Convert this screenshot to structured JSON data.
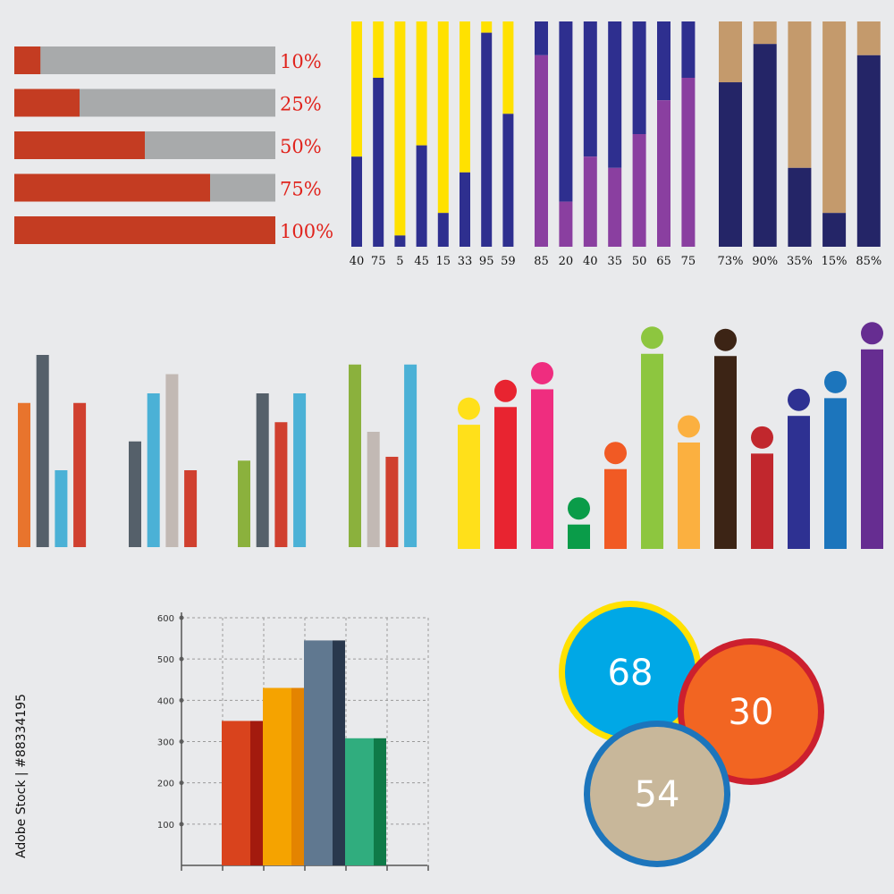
{
  "colors": {
    "background": "#e9eaec",
    "progress_fill": "#c43c22",
    "progress_track": "#a8aaab",
    "progress_label": "#e0231c",
    "yellow": "#ffe100",
    "blue": "#2e2f8f",
    "purple": "#8a3fa0",
    "tan": "#c49a6c",
    "navy": "#242567"
  },
  "watermark": "Adobe Stock | #88334195",
  "chart_data": [
    {
      "type": "bar",
      "orientation": "horizontal",
      "values": [
        10,
        25,
        50,
        75,
        100
      ],
      "labels": [
        "10%",
        "25%",
        "50%",
        "75%",
        "100%"
      ]
    },
    {
      "type": "bar",
      "stacked": true,
      "values": [
        40,
        75,
        5,
        45,
        15,
        33,
        95,
        59
      ],
      "labels": [
        "40",
        "75",
        "5",
        "45",
        "15",
        "33",
        "95",
        "59"
      ],
      "colors": [
        "#2e2f8f",
        "#ffe100"
      ]
    },
    {
      "type": "bar",
      "stacked": true,
      "values": [
        85,
        20,
        40,
        35,
        50,
        65,
        75
      ],
      "labels": [
        "85",
        "20",
        "40",
        "35",
        "50",
        "65",
        "75"
      ],
      "colors": [
        "#8a3fa0",
        "#2e2f8f"
      ]
    },
    {
      "type": "bar",
      "stacked": true,
      "values": [
        73,
        90,
        35,
        15,
        85
      ],
      "labels": [
        "73%",
        "90%",
        "35%",
        "15%",
        "85%"
      ],
      "colors": [
        "#242567",
        "#c49a6c"
      ]
    },
    {
      "type": "bar",
      "groups": [
        {
          "values": [
            75,
            100,
            40,
            75
          ],
          "colors": [
            "#e8742d",
            "#55606a",
            "#4bb1d6",
            "#d0402f"
          ]
        },
        {
          "values": [
            55,
            80,
            90,
            40
          ],
          "colors": [
            "#55606a",
            "#4bb1d6",
            "#c2b9b4",
            "#d0402f"
          ]
        },
        {
          "values": [
            45,
            80,
            65,
            80
          ],
          "colors": [
            "#8bb13d",
            "#55606a",
            "#d0402f",
            "#4bb1d6"
          ]
        },
        {
          "values": [
            95,
            60,
            47,
            95
          ],
          "colors": [
            "#8bb13d",
            "#c2b9b4",
            "#d0402f",
            "#4bb1d6"
          ]
        }
      ]
    },
    {
      "type": "bar",
      "style": "lollipop",
      "values": [
        56,
        64,
        72,
        11,
        36,
        88,
        48,
        87,
        43,
        60,
        68,
        90
      ],
      "colors": [
        "#ffe01a",
        "#e82430",
        "#ef2d7f",
        "#0a9c49",
        "#f15a24",
        "#8dc63f",
        "#fbb040",
        "#3c2415",
        "#c1272d",
        "#2e3192",
        "#1c75bc",
        "#662d91"
      ]
    },
    {
      "type": "bar",
      "ylim": [
        0,
        600
      ],
      "yticks": [
        "100",
        "200",
        "300",
        "400",
        "500",
        "600"
      ],
      "grid": true,
      "values": [
        350,
        430,
        545,
        308
      ],
      "colors": [
        "#d9431d",
        "#f5a300",
        "#607890",
        "#30ad7e"
      ],
      "shade_colors": [
        "#a31a0e",
        "#e48400",
        "#29384d",
        "#0f7a48"
      ]
    },
    {
      "type": "bubble",
      "values": [
        68,
        30,
        54
      ],
      "labels": [
        "68",
        "30",
        "54"
      ],
      "fill_colors": [
        "#00a8e6",
        "#f26522",
        "#c8b79a"
      ],
      "ring_colors": [
        "#ffe100",
        "#cc1f2e",
        "#1c75bc"
      ]
    }
  ]
}
